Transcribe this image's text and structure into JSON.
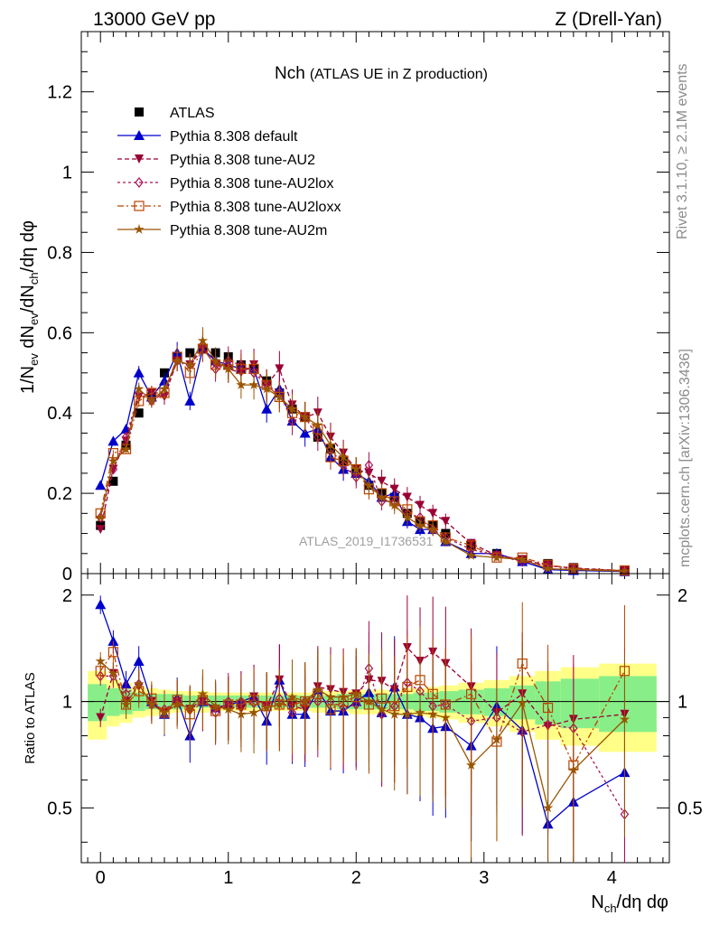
{
  "header": {
    "left": "13000 GeV pp",
    "right": "Z (Drell-Yan)"
  },
  "side_text": {
    "rivet": "Rivet 3.1.10, ≥ 2.1M events",
    "mcplots": "mcplots.cern.ch [arXiv:1306.3436]"
  },
  "watermark": "ATLAS_2019_I1736531",
  "chart_data": [
    {
      "type": "line",
      "panel": "main",
      "title": "Nch",
      "subtitle": "(ATLAS UE in Z production)",
      "xlabel": "N_ch/dη dφ",
      "ylabel": "1/N_ev dN_ev/dN_ch/dη dφ",
      "xlim": [
        -0.15,
        4.45
      ],
      "ylim": [
        0,
        1.35
      ],
      "yticks": [
        "0",
        "0.2",
        "0.4",
        "0.6",
        "0.8",
        "1",
        "1.2"
      ],
      "xticks": [
        "0",
        "1",
        "2",
        "3",
        "4"
      ],
      "legend_position": "top-left",
      "x": [
        0.0,
        0.1,
        0.2,
        0.3,
        0.4,
        0.5,
        0.6,
        0.7,
        0.8,
        0.9,
        1.0,
        1.1,
        1.2,
        1.3,
        1.4,
        1.5,
        1.6,
        1.7,
        1.8,
        1.9,
        2.0,
        2.1,
        2.2,
        2.3,
        2.4,
        2.5,
        2.6,
        2.7,
        2.9,
        3.1,
        3.3,
        3.5,
        3.7,
        4.1
      ],
      "series": [
        {
          "name": "ATLAS",
          "color": "#000000",
          "marker": "square",
          "values": [
            0.12,
            0.23,
            0.32,
            0.4,
            0.44,
            0.5,
            0.54,
            0.55,
            0.56,
            0.55,
            0.54,
            0.52,
            0.51,
            0.48,
            0.45,
            0.41,
            0.39,
            0.34,
            0.31,
            0.28,
            0.25,
            0.22,
            0.2,
            0.19,
            0.15,
            0.13,
            0.12,
            0.1,
            0.07,
            0.05,
            0.035,
            0.025,
            0.015,
            0.008
          ]
        },
        {
          "name": "Pythia 8.308 default",
          "color": "#0000cc",
          "marker": "triangle-up",
          "dash": "",
          "values": [
            0.22,
            0.33,
            0.36,
            0.5,
            0.44,
            0.48,
            0.55,
            0.43,
            0.56,
            0.53,
            0.52,
            0.51,
            0.51,
            0.41,
            0.46,
            0.38,
            0.35,
            0.36,
            0.29,
            0.26,
            0.25,
            0.23,
            0.19,
            0.2,
            0.13,
            0.11,
            0.11,
            0.08,
            0.05,
            0.05,
            0.03,
            0.01,
            0.008,
            0.005
          ]
        },
        {
          "name": "Pythia 8.308 tune-AU2",
          "color": "#990033",
          "marker": "triangle-down",
          "dash": "5,3",
          "values": [
            0.11,
            0.26,
            0.33,
            0.44,
            0.45,
            0.44,
            0.53,
            0.52,
            0.56,
            0.52,
            0.51,
            0.5,
            0.52,
            0.47,
            0.51,
            0.42,
            0.39,
            0.4,
            0.34,
            0.3,
            0.26,
            0.25,
            0.23,
            0.21,
            0.19,
            0.17,
            0.15,
            0.13,
            0.075,
            0.045,
            0.035,
            0.02,
            0.014,
            0.007
          ]
        },
        {
          "name": "Pythia 8.308 tune-AU2lox",
          "color": "#aa1155",
          "marker": "diamond-open",
          "dash": "3,3",
          "values": [
            0.14,
            0.26,
            0.34,
            0.45,
            0.43,
            0.45,
            0.53,
            0.52,
            0.57,
            0.51,
            0.53,
            0.52,
            0.5,
            0.47,
            0.45,
            0.38,
            0.39,
            0.34,
            0.31,
            0.27,
            0.24,
            0.27,
            0.18,
            0.18,
            0.15,
            0.14,
            0.11,
            0.09,
            0.06,
            0.045,
            0.03,
            0.02,
            0.012,
            0.006
          ]
        },
        {
          "name": "Pythia 8.308 tune-AU2loxx",
          "color": "#bb4400",
          "marker": "square-open",
          "dash": "7,3,2,3",
          "values": [
            0.15,
            0.3,
            0.31,
            0.43,
            0.45,
            0.45,
            0.54,
            0.5,
            0.56,
            0.52,
            0.52,
            0.51,
            0.51,
            0.47,
            0.44,
            0.4,
            0.39,
            0.36,
            0.29,
            0.28,
            0.26,
            0.21,
            0.2,
            0.18,
            0.16,
            0.13,
            0.12,
            0.09,
            0.07,
            0.04,
            0.04,
            0.022,
            0.012,
            0.008
          ]
        },
        {
          "name": "Pythia 8.308 tune-AU2m",
          "color": "#995500",
          "marker": "star",
          "dash": "",
          "values": [
            0.14,
            0.28,
            0.31,
            0.46,
            0.43,
            0.46,
            0.53,
            0.52,
            0.58,
            0.53,
            0.51,
            0.47,
            0.47,
            0.46,
            0.44,
            0.41,
            0.39,
            0.37,
            0.32,
            0.29,
            0.26,
            0.22,
            0.19,
            0.17,
            0.14,
            0.12,
            0.11,
            0.08,
            0.045,
            0.04,
            0.035,
            0.012,
            0.01,
            0.006
          ]
        }
      ]
    },
    {
      "type": "line",
      "panel": "ratio",
      "ylabel": "Ratio to ATLAS",
      "xlabel": "N_ch/dη dφ",
      "ylim": [
        0.35,
        2.3
      ],
      "yticks": [
        "0.5",
        "1",
        "2"
      ],
      "xlim": [
        -0.15,
        4.45
      ],
      "band_edges": [
        -0.1,
        0.05,
        0.15,
        0.25,
        0.35,
        0.45,
        0.55,
        0.65,
        0.75,
        0.85,
        0.95,
        1.05,
        1.15,
        1.25,
        1.35,
        1.45,
        1.55,
        1.65,
        1.75,
        1.85,
        1.95,
        2.05,
        2.15,
        2.25,
        2.35,
        2.45,
        2.55,
        2.65,
        2.8,
        3.0,
        3.2,
        3.4,
        3.6,
        3.9,
        4.35
      ],
      "band_inner": [
        0.12,
        0.09,
        0.08,
        0.06,
        0.05,
        0.05,
        0.05,
        0.04,
        0.04,
        0.04,
        0.04,
        0.04,
        0.04,
        0.04,
        0.04,
        0.04,
        0.04,
        0.04,
        0.04,
        0.05,
        0.05,
        0.05,
        0.05,
        0.05,
        0.05,
        0.06,
        0.06,
        0.07,
        0.08,
        0.09,
        0.11,
        0.14,
        0.16,
        0.18,
        0.18
      ],
      "band_outer": [
        0.22,
        0.15,
        0.13,
        0.1,
        0.09,
        0.08,
        0.07,
        0.07,
        0.07,
        0.06,
        0.06,
        0.06,
        0.06,
        0.06,
        0.06,
        0.06,
        0.06,
        0.07,
        0.07,
        0.07,
        0.08,
        0.08,
        0.08,
        0.08,
        0.09,
        0.09,
        0.1,
        0.11,
        0.13,
        0.15,
        0.18,
        0.22,
        0.25,
        0.28,
        0.29
      ],
      "series": [
        {
          "name": "Pythia 8.308 default",
          "values": [
            1.88,
            1.48,
            1.12,
            1.3,
            1.0,
            0.92,
            1.02,
            0.8,
            1.0,
            0.96,
            0.98,
            1.0,
            1.03,
            0.88,
            1.15,
            0.92,
            0.92,
            1.08,
            0.94,
            0.94,
            1.0,
            1.06,
            0.93,
            1.1,
            0.92,
            0.9,
            0.84,
            0.85,
            0.75,
            0.97,
            0.83,
            0.45,
            0.52,
            0.63
          ]
        },
        {
          "name": "Pythia 8.308 tune-AU2",
          "values": [
            0.9,
            1.2,
            1.0,
            1.1,
            1.0,
            0.93,
            1.0,
            0.95,
            1.0,
            0.95,
            0.97,
            0.95,
            1.03,
            0.97,
            1.15,
            0.97,
            0.95,
            1.1,
            1.08,
            1.06,
            1.05,
            1.15,
            1.14,
            1.08,
            1.42,
            1.3,
            1.38,
            1.28,
            1.1,
            0.93,
            1.05,
            0.85,
            0.89,
            0.92
          ]
        },
        {
          "name": "Pythia 8.308 tune-AU2lox",
          "values": [
            1.18,
            1.18,
            1.05,
            1.12,
            0.98,
            0.95,
            1.0,
            0.95,
            1.02,
            0.93,
            1.0,
            1.0,
            0.99,
            0.97,
            1.02,
            0.93,
            1.0,
            1.0,
            1.0,
            0.96,
            0.98,
            1.24,
            0.92,
            0.97,
            1.13,
            1.07,
            0.97,
            0.98,
            0.88,
            0.9,
            0.82,
            0.86,
            0.84,
            0.48
          ]
        },
        {
          "name": "Pythia 8.308 tune-AU2loxx",
          "values": [
            1.22,
            1.38,
            0.98,
            1.07,
            1.02,
            0.93,
            1.01,
            0.92,
            1.01,
            0.94,
            0.98,
            0.98,
            1.01,
            0.97,
            0.98,
            0.98,
            1.0,
            1.05,
            0.95,
            1.0,
            1.03,
            0.98,
            1.02,
            0.97,
            1.1,
            1.15,
            1.05,
            0.98,
            1.05,
            0.77,
            1.28,
            0.96,
            0.66,
            1.22
          ]
        },
        {
          "name": "Pythia 8.308 tune-AU2m",
          "values": [
            1.3,
            1.2,
            0.98,
            1.12,
            0.98,
            0.93,
            0.98,
            0.96,
            1.05,
            0.97,
            0.95,
            0.92,
            0.93,
            0.96,
            0.98,
            1.03,
            1.0,
            1.08,
            1.03,
            1.03,
            1.05,
            1.0,
            0.95,
            0.92,
            0.92,
            0.93,
            0.92,
            0.9,
            0.66,
            0.78,
            0.99,
            0.5,
            0.64,
            0.89
          ]
        }
      ]
    }
  ]
}
